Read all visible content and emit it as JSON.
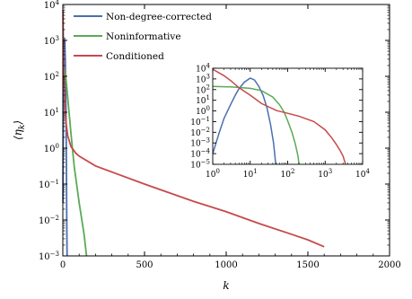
{
  "chart_data": {
    "type": "line",
    "xlabel": "k",
    "ylabel": "⟨η_k⟩",
    "yscale": "log",
    "xlim": [
      0,
      2000
    ],
    "ylim": [
      0.001,
      10000
    ],
    "x_ticks": [
      "0",
      "500",
      "1000",
      "1500",
      "2000"
    ],
    "y_ticks": [
      {
        "base": "10",
        "exp": "−3",
        "value": 0.001
      },
      {
        "base": "10",
        "exp": "−2",
        "value": 0.01
      },
      {
        "base": "10",
        "exp": "−1",
        "value": 0.1
      },
      {
        "base": "10",
        "exp": "0",
        "value": 1
      },
      {
        "base": "10",
        "exp": "1",
        "value": 10
      },
      {
        "base": "10",
        "exp": "2",
        "value": 100
      },
      {
        "base": "10",
        "exp": "3",
        "value": 1000
      },
      {
        "base": "10",
        "exp": "4",
        "value": 10000
      }
    ],
    "legend": {
      "placement": "top-left",
      "entries": [
        {
          "label": "Non-degree-corrected",
          "color": "#4a6fb0"
        },
        {
          "label": "Noninformative",
          "color": "#5aaa55"
        },
        {
          "label": "Conditioned",
          "color": "#c84a4a"
        }
      ]
    },
    "series": [
      {
        "name": "Non-degree-corrected",
        "color": "#4a6fb0",
        "points": [
          [
            1,
            0.03
          ],
          [
            2,
            1
          ],
          [
            4,
            30
          ],
          [
            6,
            300
          ],
          [
            8,
            900
          ],
          [
            10,
            1200
          ],
          [
            12,
            900
          ],
          [
            15,
            300
          ],
          [
            18,
            30
          ],
          [
            20,
            5
          ],
          [
            22,
            0.3
          ],
          [
            24,
            0.01
          ],
          [
            26,
            0.001
          ]
        ]
      },
      {
        "name": "Noninformative",
        "color": "#5aaa55",
        "points": [
          [
            1,
            250
          ],
          [
            5,
            180
          ],
          [
            10,
            150
          ],
          [
            20,
            80
          ],
          [
            30,
            25
          ],
          [
            40,
            8
          ],
          [
            50,
            2.5
          ],
          [
            70,
            0.3
          ],
          [
            100,
            0.03
          ],
          [
            130,
            0.004
          ],
          [
            145,
            0.001
          ]
        ]
      },
      {
        "name": "Conditioned",
        "color": "#c84a4a",
        "points": [
          [
            1,
            7000
          ],
          [
            2,
            2500
          ],
          [
            4,
            400
          ],
          [
            6,
            120
          ],
          [
            10,
            30
          ],
          [
            15,
            10
          ],
          [
            20,
            5
          ],
          [
            30,
            2.2
          ],
          [
            50,
            1.1
          ],
          [
            80,
            0.72
          ],
          [
            100,
            0.6
          ],
          [
            200,
            0.32
          ],
          [
            500,
            0.1
          ],
          [
            800,
            0.033
          ],
          [
            1000,
            0.017
          ],
          [
            1200,
            0.008
          ],
          [
            1400,
            0.004
          ],
          [
            1500,
            0.0028
          ],
          [
            1600,
            0.0018
          ],
          [
            1700,
            0.0009
          ]
        ]
      }
    ],
    "inset": {
      "xscale": "log",
      "yscale": "log",
      "xlim": [
        1,
        10000
      ],
      "ylim": [
        1e-05,
        10000
      ],
      "x_ticks": [
        {
          "base": "10",
          "exp": "0",
          "value": 1
        },
        {
          "base": "10",
          "exp": "1",
          "value": 10
        },
        {
          "base": "10",
          "exp": "2",
          "value": 100
        },
        {
          "base": "10",
          "exp": "3",
          "value": 1000
        },
        {
          "base": "10",
          "exp": "4",
          "value": 10000
        }
      ],
      "y_ticks": [
        {
          "base": "10",
          "exp": "−5",
          "value": 1e-05
        },
        {
          "base": "10",
          "exp": "−4",
          "value": 0.0001
        },
        {
          "base": "10",
          "exp": "−3",
          "value": 0.001
        },
        {
          "base": "10",
          "exp": "−2",
          "value": 0.01
        },
        {
          "base": "10",
          "exp": "−1",
          "value": 0.1
        },
        {
          "base": "10",
          "exp": "0",
          "value": 1
        },
        {
          "base": "10",
          "exp": "1",
          "value": 10
        },
        {
          "base": "10",
          "exp": "2",
          "value": 100
        },
        {
          "base": "10",
          "exp": "3",
          "value": 1000
        },
        {
          "base": "10",
          "exp": "4",
          "value": 10000
        }
      ],
      "series": [
        {
          "name": "Non-degree-corrected",
          "color": "#4a6fb0",
          "points": [
            [
              1,
              0.0001
            ],
            [
              1.5,
              0.01
            ],
            [
              2,
              0.2
            ],
            [
              3,
              4
            ],
            [
              4,
              30
            ],
            [
              5,
              120
            ],
            [
              7,
              500
            ],
            [
              10,
              1200
            ],
            [
              13,
              800
            ],
            [
              17,
              200
            ],
            [
              22,
              30
            ],
            [
              28,
              2
            ],
            [
              35,
              0.05
            ],
            [
              42,
              0.001
            ],
            [
              48,
              1e-05
            ]
          ]
        },
        {
          "name": "Noninformative",
          "color": "#5aaa55",
          "points": [
            [
              1,
              200
            ],
            [
              3,
              180
            ],
            [
              10,
              130
            ],
            [
              20,
              80
            ],
            [
              40,
              20
            ],
            [
              60,
              4
            ],
            [
              80,
              0.8
            ],
            [
              100,
              0.12
            ],
            [
              130,
              0.01
            ],
            [
              160,
              0.0008
            ],
            [
              190,
              5e-05
            ],
            [
              200,
              1e-05
            ]
          ]
        },
        {
          "name": "Conditioned",
          "color": "#c84a4a",
          "points": [
            [
              1,
              8000
            ],
            [
              2,
              2000
            ],
            [
              3,
              700
            ],
            [
              5,
              150
            ],
            [
              10,
              30
            ],
            [
              20,
              5
            ],
            [
              50,
              1.1
            ],
            [
              100,
              0.6
            ],
            [
              200,
              0.32
            ],
            [
              500,
              0.1
            ],
            [
              1000,
              0.017
            ],
            [
              1500,
              0.003
            ],
            [
              2000,
              0.0007
            ],
            [
              2500,
              0.0002
            ],
            [
              3000,
              6e-05
            ],
            [
              3500,
              1e-05
            ]
          ]
        }
      ]
    }
  }
}
